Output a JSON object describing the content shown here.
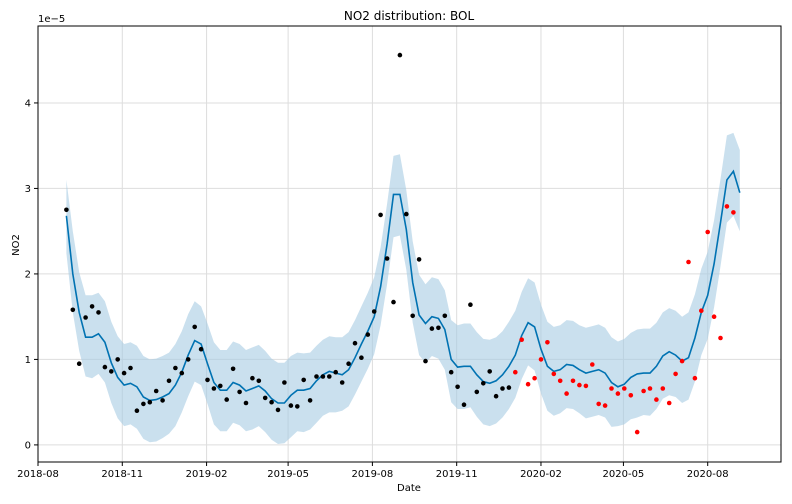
{
  "chart_data": {
    "type": "scatter",
    "title": "NO2 distribution: BOL",
    "xlabel": "Date",
    "ylabel": "NO2",
    "y_scale_label": "1e−5",
    "y_unit_multiplier": 1e-05,
    "xlim": [
      "2018-08-01",
      "2020-10-20"
    ],
    "ylim": [
      -0.2,
      4.9
    ],
    "x_ticks": [
      "2018-08",
      "2018-11",
      "2019-02",
      "2019-05",
      "2019-08",
      "2019-11",
      "2020-02",
      "2020-05",
      "2020-08"
    ],
    "y_ticks": [
      0,
      1,
      2,
      3,
      4
    ],
    "grid": true,
    "colors": {
      "forecast_line": "#0072B2",
      "uncertainty_band": "#a6cbe3",
      "history_points": "#000000",
      "test_points": "#ff0000",
      "grid": "#dddddd"
    },
    "series": [
      {
        "role": "observed-history",
        "color": "#000000",
        "points": [
          [
            "2018-09-01",
            2.75
          ],
          [
            "2018-09-08",
            1.58
          ],
          [
            "2018-09-15",
            0.95
          ],
          [
            "2018-09-22",
            1.49
          ],
          [
            "2018-09-29",
            1.62
          ],
          [
            "2018-10-06",
            1.55
          ],
          [
            "2018-10-13",
            0.91
          ],
          [
            "2018-10-20",
            0.86
          ],
          [
            "2018-10-27",
            1.0
          ],
          [
            "2018-11-03",
            0.84
          ],
          [
            "2018-11-10",
            0.9
          ],
          [
            "2018-11-17",
            0.4
          ],
          [
            "2018-11-24",
            0.48
          ],
          [
            "2018-12-01",
            0.5
          ],
          [
            "2018-12-08",
            0.63
          ],
          [
            "2018-12-15",
            0.52
          ],
          [
            "2018-12-22",
            0.75
          ],
          [
            "2018-12-29",
            0.9
          ],
          [
            "2019-01-05",
            0.84
          ],
          [
            "2019-01-12",
            1.0
          ],
          [
            "2019-01-19",
            1.38
          ],
          [
            "2019-01-26",
            1.12
          ],
          [
            "2019-02-02",
            0.76
          ],
          [
            "2019-02-09",
            0.66
          ],
          [
            "2019-02-16",
            0.69
          ],
          [
            "2019-02-23",
            0.53
          ],
          [
            "2019-03-02",
            0.89
          ],
          [
            "2019-03-09",
            0.62
          ],
          [
            "2019-03-16",
            0.49
          ],
          [
            "2019-03-23",
            0.78
          ],
          [
            "2019-03-30",
            0.75
          ],
          [
            "2019-04-06",
            0.55
          ],
          [
            "2019-04-13",
            0.5
          ],
          [
            "2019-04-20",
            0.41
          ],
          [
            "2019-04-27",
            0.73
          ],
          [
            "2019-05-04",
            0.46
          ],
          [
            "2019-05-11",
            0.45
          ],
          [
            "2019-05-18",
            0.76
          ],
          [
            "2019-05-25",
            0.52
          ],
          [
            "2019-06-01",
            0.8
          ],
          [
            "2019-06-08",
            0.8
          ],
          [
            "2019-06-15",
            0.8
          ],
          [
            "2019-06-22",
            0.85
          ],
          [
            "2019-06-29",
            0.73
          ],
          [
            "2019-07-06",
            0.95
          ],
          [
            "2019-07-13",
            1.19
          ],
          [
            "2019-07-20",
            1.02
          ],
          [
            "2019-07-27",
            1.29
          ],
          [
            "2019-08-03",
            1.56
          ],
          [
            "2019-08-10",
            2.69
          ],
          [
            "2019-08-17",
            2.18
          ],
          [
            "2019-08-24",
            1.67
          ],
          [
            "2019-08-31",
            4.56
          ],
          [
            "2019-09-07",
            2.7
          ],
          [
            "2019-09-14",
            1.51
          ],
          [
            "2019-09-21",
            2.17
          ],
          [
            "2019-09-28",
            0.98
          ],
          [
            "2019-10-05",
            1.36
          ],
          [
            "2019-10-12",
            1.37
          ],
          [
            "2019-10-19",
            1.51
          ],
          [
            "2019-10-26",
            0.85
          ],
          [
            "2019-11-02",
            0.68
          ],
          [
            "2019-11-09",
            0.47
          ],
          [
            "2019-11-16",
            1.64
          ],
          [
            "2019-11-23",
            0.62
          ],
          [
            "2019-11-30",
            0.72
          ],
          [
            "2019-12-07",
            0.86
          ],
          [
            "2019-12-14",
            0.57
          ],
          [
            "2019-12-21",
            0.66
          ],
          [
            "2019-12-28",
            0.67
          ]
        ]
      },
      {
        "role": "observed-test",
        "color": "#ff0000",
        "points": [
          [
            "2020-01-04",
            0.85
          ],
          [
            "2020-01-11",
            1.23
          ],
          [
            "2020-01-18",
            0.71
          ],
          [
            "2020-01-25",
            0.78
          ],
          [
            "2020-02-01",
            1.0
          ],
          [
            "2020-02-08",
            1.2
          ],
          [
            "2020-02-15",
            0.83
          ],
          [
            "2020-02-22",
            0.75
          ],
          [
            "2020-02-29",
            0.6
          ],
          [
            "2020-03-07",
            0.75
          ],
          [
            "2020-03-14",
            0.7
          ],
          [
            "2020-03-21",
            0.69
          ],
          [
            "2020-03-28",
            0.94
          ],
          [
            "2020-04-04",
            0.48
          ],
          [
            "2020-04-11",
            0.46
          ],
          [
            "2020-04-18",
            0.66
          ],
          [
            "2020-04-25",
            0.6
          ],
          [
            "2020-05-02",
            0.66
          ],
          [
            "2020-05-09",
            0.58
          ],
          [
            "2020-05-16",
            0.15
          ],
          [
            "2020-05-23",
            0.63
          ],
          [
            "2020-05-30",
            0.66
          ],
          [
            "2020-06-06",
            0.53
          ],
          [
            "2020-06-13",
            0.66
          ],
          [
            "2020-06-20",
            0.49
          ],
          [
            "2020-06-27",
            0.83
          ],
          [
            "2020-07-04",
            0.98
          ],
          [
            "2020-07-11",
            2.14
          ],
          [
            "2020-07-18",
            0.78
          ],
          [
            "2020-07-25",
            1.57
          ],
          [
            "2020-08-01",
            2.49
          ],
          [
            "2020-08-08",
            1.5
          ],
          [
            "2020-08-15",
            1.25
          ],
          [
            "2020-08-22",
            2.79
          ],
          [
            "2020-08-29",
            2.72
          ]
        ]
      },
      {
        "role": "forecast",
        "color": "#0072B2",
        "points": [
          [
            "2018-09-01",
            2.68
          ],
          [
            "2018-09-08",
            2.0
          ],
          [
            "2018-09-15",
            1.55
          ],
          [
            "2018-09-22",
            1.26
          ],
          [
            "2018-09-29",
            1.26
          ],
          [
            "2018-10-06",
            1.3
          ],
          [
            "2018-10-13",
            1.2
          ],
          [
            "2018-10-20",
            0.96
          ],
          [
            "2018-10-27",
            0.79
          ],
          [
            "2018-11-03",
            0.7
          ],
          [
            "2018-11-10",
            0.72
          ],
          [
            "2018-11-17",
            0.68
          ],
          [
            "2018-11-24",
            0.56
          ],
          [
            "2018-12-01",
            0.52
          ],
          [
            "2018-12-08",
            0.53
          ],
          [
            "2018-12-15",
            0.56
          ],
          [
            "2018-12-22",
            0.6
          ],
          [
            "2018-12-29",
            0.7
          ],
          [
            "2019-01-05",
            0.85
          ],
          [
            "2019-01-12",
            1.05
          ],
          [
            "2019-01-19",
            1.22
          ],
          [
            "2019-01-26",
            1.18
          ],
          [
            "2019-02-02",
            0.95
          ],
          [
            "2019-02-09",
            0.73
          ],
          [
            "2019-02-16",
            0.64
          ],
          [
            "2019-02-23",
            0.64
          ],
          [
            "2019-03-02",
            0.73
          ],
          [
            "2019-03-09",
            0.7
          ],
          [
            "2019-03-16",
            0.63
          ],
          [
            "2019-03-23",
            0.66
          ],
          [
            "2019-03-30",
            0.69
          ],
          [
            "2019-04-06",
            0.63
          ],
          [
            "2019-04-13",
            0.54
          ],
          [
            "2019-04-20",
            0.49
          ],
          [
            "2019-04-27",
            0.49
          ],
          [
            "2019-05-04",
            0.58
          ],
          [
            "2019-05-11",
            0.64
          ],
          [
            "2019-05-18",
            0.64
          ],
          [
            "2019-05-25",
            0.66
          ],
          [
            "2019-06-01",
            0.75
          ],
          [
            "2019-06-08",
            0.82
          ],
          [
            "2019-06-15",
            0.86
          ],
          [
            "2019-06-22",
            0.84
          ],
          [
            "2019-06-29",
            0.82
          ],
          [
            "2019-07-06",
            0.88
          ],
          [
            "2019-07-13",
            1.02
          ],
          [
            "2019-07-20",
            1.18
          ],
          [
            "2019-07-27",
            1.33
          ],
          [
            "2019-08-03",
            1.5
          ],
          [
            "2019-08-10",
            1.85
          ],
          [
            "2019-08-17",
            2.35
          ],
          [
            "2019-08-24",
            2.93
          ],
          [
            "2019-08-31",
            2.93
          ],
          [
            "2019-09-07",
            2.52
          ],
          [
            "2019-09-14",
            1.9
          ],
          [
            "2019-09-21",
            1.52
          ],
          [
            "2019-09-28",
            1.42
          ],
          [
            "2019-10-05",
            1.5
          ],
          [
            "2019-10-12",
            1.48
          ],
          [
            "2019-10-19",
            1.35
          ],
          [
            "2019-10-26",
            1.0
          ],
          [
            "2019-11-02",
            0.91
          ],
          [
            "2019-11-09",
            0.92
          ],
          [
            "2019-11-16",
            0.92
          ],
          [
            "2019-11-23",
            0.82
          ],
          [
            "2019-11-30",
            0.74
          ],
          [
            "2019-12-07",
            0.72
          ],
          [
            "2019-12-14",
            0.75
          ],
          [
            "2019-12-21",
            0.82
          ],
          [
            "2019-12-28",
            0.92
          ],
          [
            "2020-01-04",
            1.05
          ],
          [
            "2020-01-11",
            1.28
          ],
          [
            "2020-01-18",
            1.43
          ],
          [
            "2020-01-25",
            1.38
          ],
          [
            "2020-02-01",
            1.12
          ],
          [
            "2020-02-08",
            0.92
          ],
          [
            "2020-02-15",
            0.86
          ],
          [
            "2020-02-22",
            0.88
          ],
          [
            "2020-02-29",
            0.94
          ],
          [
            "2020-03-07",
            0.93
          ],
          [
            "2020-03-14",
            0.88
          ],
          [
            "2020-03-21",
            0.84
          ],
          [
            "2020-03-28",
            0.86
          ],
          [
            "2020-04-04",
            0.88
          ],
          [
            "2020-04-11",
            0.84
          ],
          [
            "2020-04-18",
            0.73
          ],
          [
            "2020-04-25",
            0.68
          ],
          [
            "2020-05-02",
            0.71
          ],
          [
            "2020-05-09",
            0.79
          ],
          [
            "2020-05-16",
            0.83
          ],
          [
            "2020-05-23",
            0.84
          ],
          [
            "2020-05-30",
            0.84
          ],
          [
            "2020-06-06",
            0.92
          ],
          [
            "2020-06-13",
            1.04
          ],
          [
            "2020-06-20",
            1.09
          ],
          [
            "2020-06-27",
            1.05
          ],
          [
            "2020-07-04",
            0.98
          ],
          [
            "2020-07-11",
            1.02
          ],
          [
            "2020-07-18",
            1.25
          ],
          [
            "2020-07-25",
            1.55
          ],
          [
            "2020-08-01",
            1.75
          ],
          [
            "2020-08-08",
            2.12
          ],
          [
            "2020-08-15",
            2.6
          ],
          [
            "2020-08-22",
            3.1
          ],
          [
            "2020-08-29",
            3.2
          ],
          [
            "2020-09-05",
            2.95
          ]
        ]
      },
      {
        "role": "uncertainty-interval",
        "color": "#a6cbe3",
        "upper": [
          3.1,
          2.5,
          2.02,
          1.75,
          1.75,
          1.78,
          1.68,
          1.44,
          1.27,
          1.18,
          1.2,
          1.16,
          1.04,
          1.0,
          1.01,
          1.04,
          1.08,
          1.18,
          1.33,
          1.53,
          1.68,
          1.62,
          1.42,
          1.2,
          1.11,
          1.11,
          1.21,
          1.18,
          1.11,
          1.14,
          1.17,
          1.1,
          1.01,
          0.96,
          0.96,
          1.04,
          1.08,
          1.07,
          1.08,
          1.16,
          1.23,
          1.27,
          1.26,
          1.26,
          1.32,
          1.46,
          1.62,
          1.78,
          1.96,
          2.31,
          2.82,
          3.38,
          3.4,
          2.98,
          2.38,
          1.99,
          1.88,
          1.96,
          1.94,
          1.81,
          1.46,
          1.4,
          1.42,
          1.42,
          1.32,
          1.24,
          1.23,
          1.26,
          1.33,
          1.44,
          1.57,
          1.79,
          1.95,
          1.9,
          1.64,
          1.44,
          1.38,
          1.4,
          1.46,
          1.45,
          1.4,
          1.37,
          1.39,
          1.41,
          1.37,
          1.26,
          1.21,
          1.24,
          1.31,
          1.35,
          1.36,
          1.36,
          1.43,
          1.55,
          1.6,
          1.57,
          1.5,
          1.55,
          1.76,
          2.06,
          2.26,
          2.63,
          3.11,
          3.62,
          3.65,
          3.45
        ],
        "lower": [
          2.24,
          1.55,
          1.1,
          0.8,
          0.78,
          0.83,
          0.73,
          0.49,
          0.31,
          0.22,
          0.24,
          0.19,
          0.07,
          0.03,
          0.04,
          0.08,
          0.13,
          0.22,
          0.38,
          0.57,
          0.74,
          0.7,
          0.48,
          0.24,
          0.16,
          0.16,
          0.26,
          0.23,
          0.16,
          0.18,
          0.22,
          0.15,
          0.06,
          0.01,
          0.02,
          0.09,
          0.16,
          0.15,
          0.18,
          0.26,
          0.34,
          0.38,
          0.38,
          0.4,
          0.45,
          0.59,
          0.74,
          0.89,
          1.06,
          1.4,
          1.88,
          2.43,
          2.45,
          2.05,
          1.43,
          1.05,
          0.96,
          1.04,
          1.01,
          0.88,
          0.5,
          0.42,
          0.42,
          0.44,
          0.33,
          0.24,
          0.22,
          0.25,
          0.32,
          0.42,
          0.55,
          0.77,
          0.93,
          0.87,
          0.6,
          0.4,
          0.34,
          0.37,
          0.43,
          0.42,
          0.37,
          0.31,
          0.33,
          0.35,
          0.32,
          0.21,
          0.22,
          0.24,
          0.3,
          0.32,
          0.35,
          0.34,
          0.42,
          0.54,
          0.58,
          0.56,
          0.49,
          0.53,
          0.74,
          1.05,
          1.24,
          1.61,
          2.09,
          2.6,
          2.68,
          2.5
        ]
      }
    ]
  }
}
